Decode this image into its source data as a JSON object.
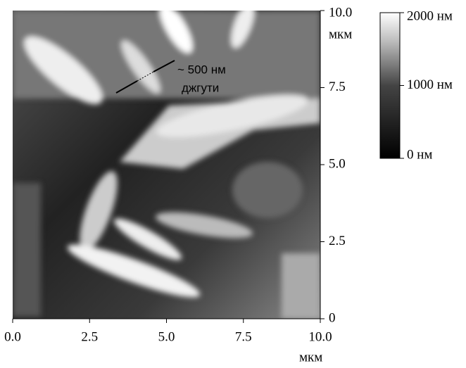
{
  "chart_data": {
    "type": "image",
    "annotations": [
      "~ 500 нм",
      "джгути"
    ],
    "xlabel": "мкм",
    "ylabel": "мкм",
    "xlim": [
      0,
      10
    ],
    "ylim": [
      0,
      10
    ],
    "xticks": [
      {
        "value": 0,
        "label": "0.0"
      },
      2.5,
      {
        "value": 5,
        "label": "5.0"
      },
      7.5,
      {
        "value": 10,
        "label": "10.0"
      }
    ],
    "yticks": [
      0,
      2.5,
      {
        "value": 5,
        "label": "5.0"
      },
      7.5,
      {
        "value": 10,
        "label": "10.0"
      }
    ],
    "colorbar": {
      "lim": [
        0,
        2000
      ],
      "ticks": [
        {
          "value": 0,
          "label": "0 нм"
        },
        {
          "value": 1000,
          "label": "1000 нм"
        },
        {
          "value": 2000,
          "label": "2000 нм"
        }
      ]
    }
  }
}
